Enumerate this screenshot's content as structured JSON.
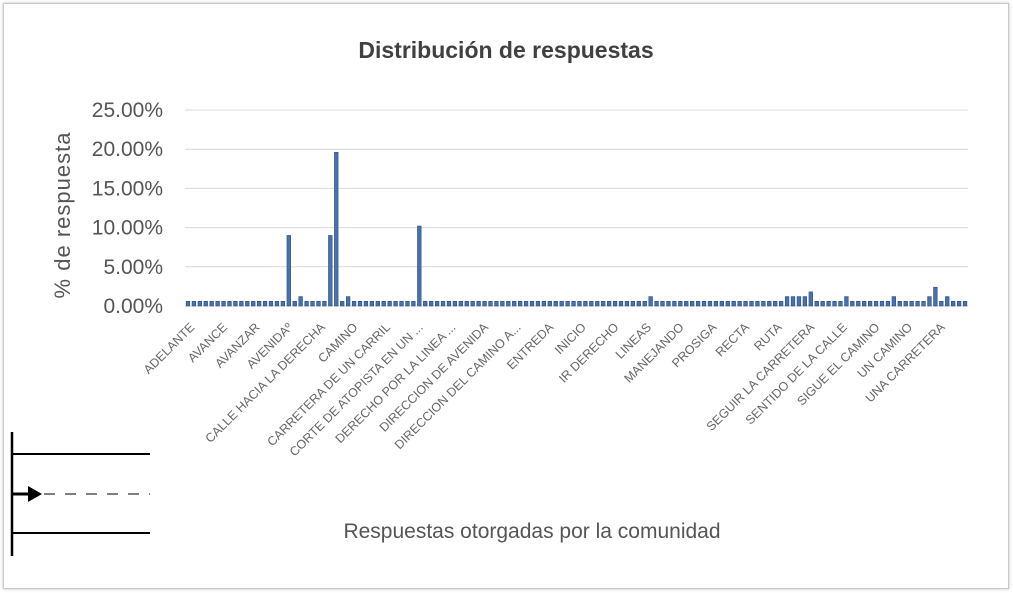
{
  "chart_data": {
    "type": "bar",
    "title": "Distribución  de respuestas",
    "xlabel": "Respuestas otorgadas por la comunidad",
    "ylabel": "% de respuesta",
    "ylim": [
      0,
      25
    ],
    "yticks": [
      "25.00%",
      "20.00%",
      "15.00%",
      "10.00%",
      "5.00%",
      "0.00%"
    ],
    "ytick_values": [
      25,
      20,
      15,
      10,
      5,
      0
    ],
    "grid": true,
    "legend": "none",
    "x_tick_labels": [
      "ADELANTE",
      "AVANCE",
      "AVANZAR",
      "AVENIDAº",
      "CALLE HACIA LA DERECHA",
      "CAMINO",
      "CARRETERA DE UN CARRIL",
      "CORTE DE ATOPISTA EN UN ...",
      "DERECHO POR LA LINEA ...",
      "DIRECCION DE AVENIDA",
      "DIRECCION DEL CAMINO A...",
      "ENTREDA",
      "INICIO",
      "IR DERECHO",
      "LINEAS",
      "MANEJANDO",
      "PROSIGA",
      "RECTA",
      "RUTA",
      "SEGUIR LA CARRETERA",
      "SENTIDO DE LA CALLE",
      "SIGUE EL CAMINO",
      "UN CAMINO",
      "UNA CARRETERA"
    ],
    "values": [
      0.6,
      0.6,
      0.6,
      0.6,
      0.6,
      0.6,
      0.6,
      0.6,
      0.6,
      0.6,
      0.6,
      0.6,
      0.6,
      0.6,
      0.6,
      0.6,
      0.6,
      9.0,
      0.6,
      1.2,
      0.6,
      0.6,
      0.6,
      0.6,
      9.0,
      19.6,
      0.6,
      1.2,
      0.6,
      0.6,
      0.6,
      0.6,
      0.6,
      0.6,
      0.6,
      0.6,
      0.6,
      0.6,
      0.6,
      10.2,
      0.6,
      0.6,
      0.6,
      0.6,
      0.6,
      0.6,
      0.6,
      0.6,
      0.6,
      0.6,
      0.6,
      0.6,
      0.6,
      0.6,
      0.6,
      0.6,
      0.6,
      0.6,
      0.6,
      0.6,
      0.6,
      0.6,
      0.6,
      0.6,
      0.6,
      0.6,
      0.6,
      0.6,
      0.6,
      0.6,
      0.6,
      0.6,
      0.6,
      0.6,
      0.6,
      0.6,
      0.6,
      0.6,
      1.2,
      0.6,
      0.6,
      0.6,
      0.6,
      0.6,
      0.6,
      0.6,
      0.6,
      0.6,
      0.6,
      0.6,
      0.6,
      0.6,
      0.6,
      0.6,
      0.6,
      0.6,
      0.6,
      0.6,
      0.6,
      0.6,
      0.6,
      1.2,
      1.2,
      1.2,
      1.2,
      1.8,
      0.6,
      0.6,
      0.6,
      0.6,
      0.6,
      1.2,
      0.6,
      0.6,
      0.6,
      0.6,
      0.6,
      0.6,
      0.6,
      1.2,
      0.6,
      0.6,
      0.6,
      0.6,
      0.6,
      1.2,
      2.4,
      0.6,
      1.2,
      0.6,
      0.6,
      0.6
    ]
  },
  "legend_icon": {
    "description_name": "road-lanes-icon"
  }
}
